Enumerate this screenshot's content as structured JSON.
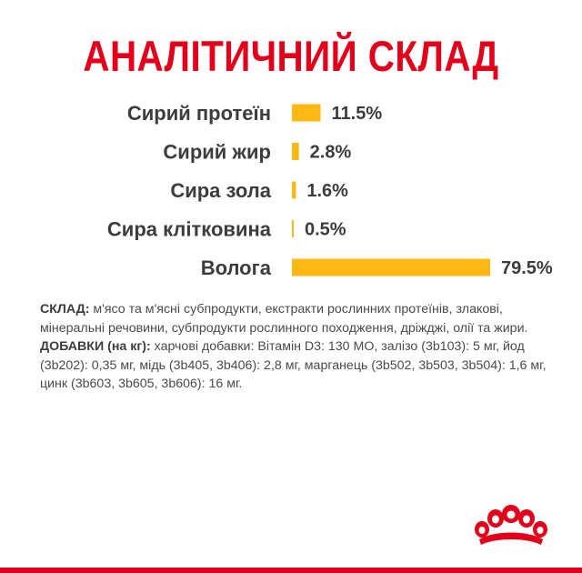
{
  "title": "АНАЛІТИЧНИЙ СКЛАД",
  "chart_data": {
    "type": "bar",
    "orientation": "horizontal",
    "categories": [
      "Сирий протеїн",
      "Сирий жир",
      "Сира зола",
      "Сира клітковина",
      "Волога"
    ],
    "values": [
      11.5,
      2.8,
      1.6,
      0.5,
      79.5
    ],
    "value_labels": [
      "11.5%",
      "2.8%",
      "1.6%",
      "0.5%",
      "79.5%"
    ],
    "unit": "%",
    "bar_color": "#fdb813",
    "grid": false,
    "legend": "none"
  },
  "composition": {
    "label": "СКЛАД:",
    "text": " м'ясо та м'ясні субпродукти, екстракти рослинних протеїнів, злакові, мінеральні речовини, субпродукти рослинного походження, дріжджі, олії та жири."
  },
  "additives": {
    "label": "ДОБАВКИ (на кг):",
    "text": " харчові добавки: Вітамін D3: 130 МО, залізо (3b103): 5 мг, йод (3b202): 0,35 мг, мідь (3b405, 3b406): 2,8 мг, марганець (3b502, 3b503, 3b504): 1,6 мг, цинк (3b603, 3b605, 3b606): 16 мг."
  },
  "brand": {
    "logo_icon": "royal-canin-crown-icon",
    "primary_color": "#e2001a"
  }
}
